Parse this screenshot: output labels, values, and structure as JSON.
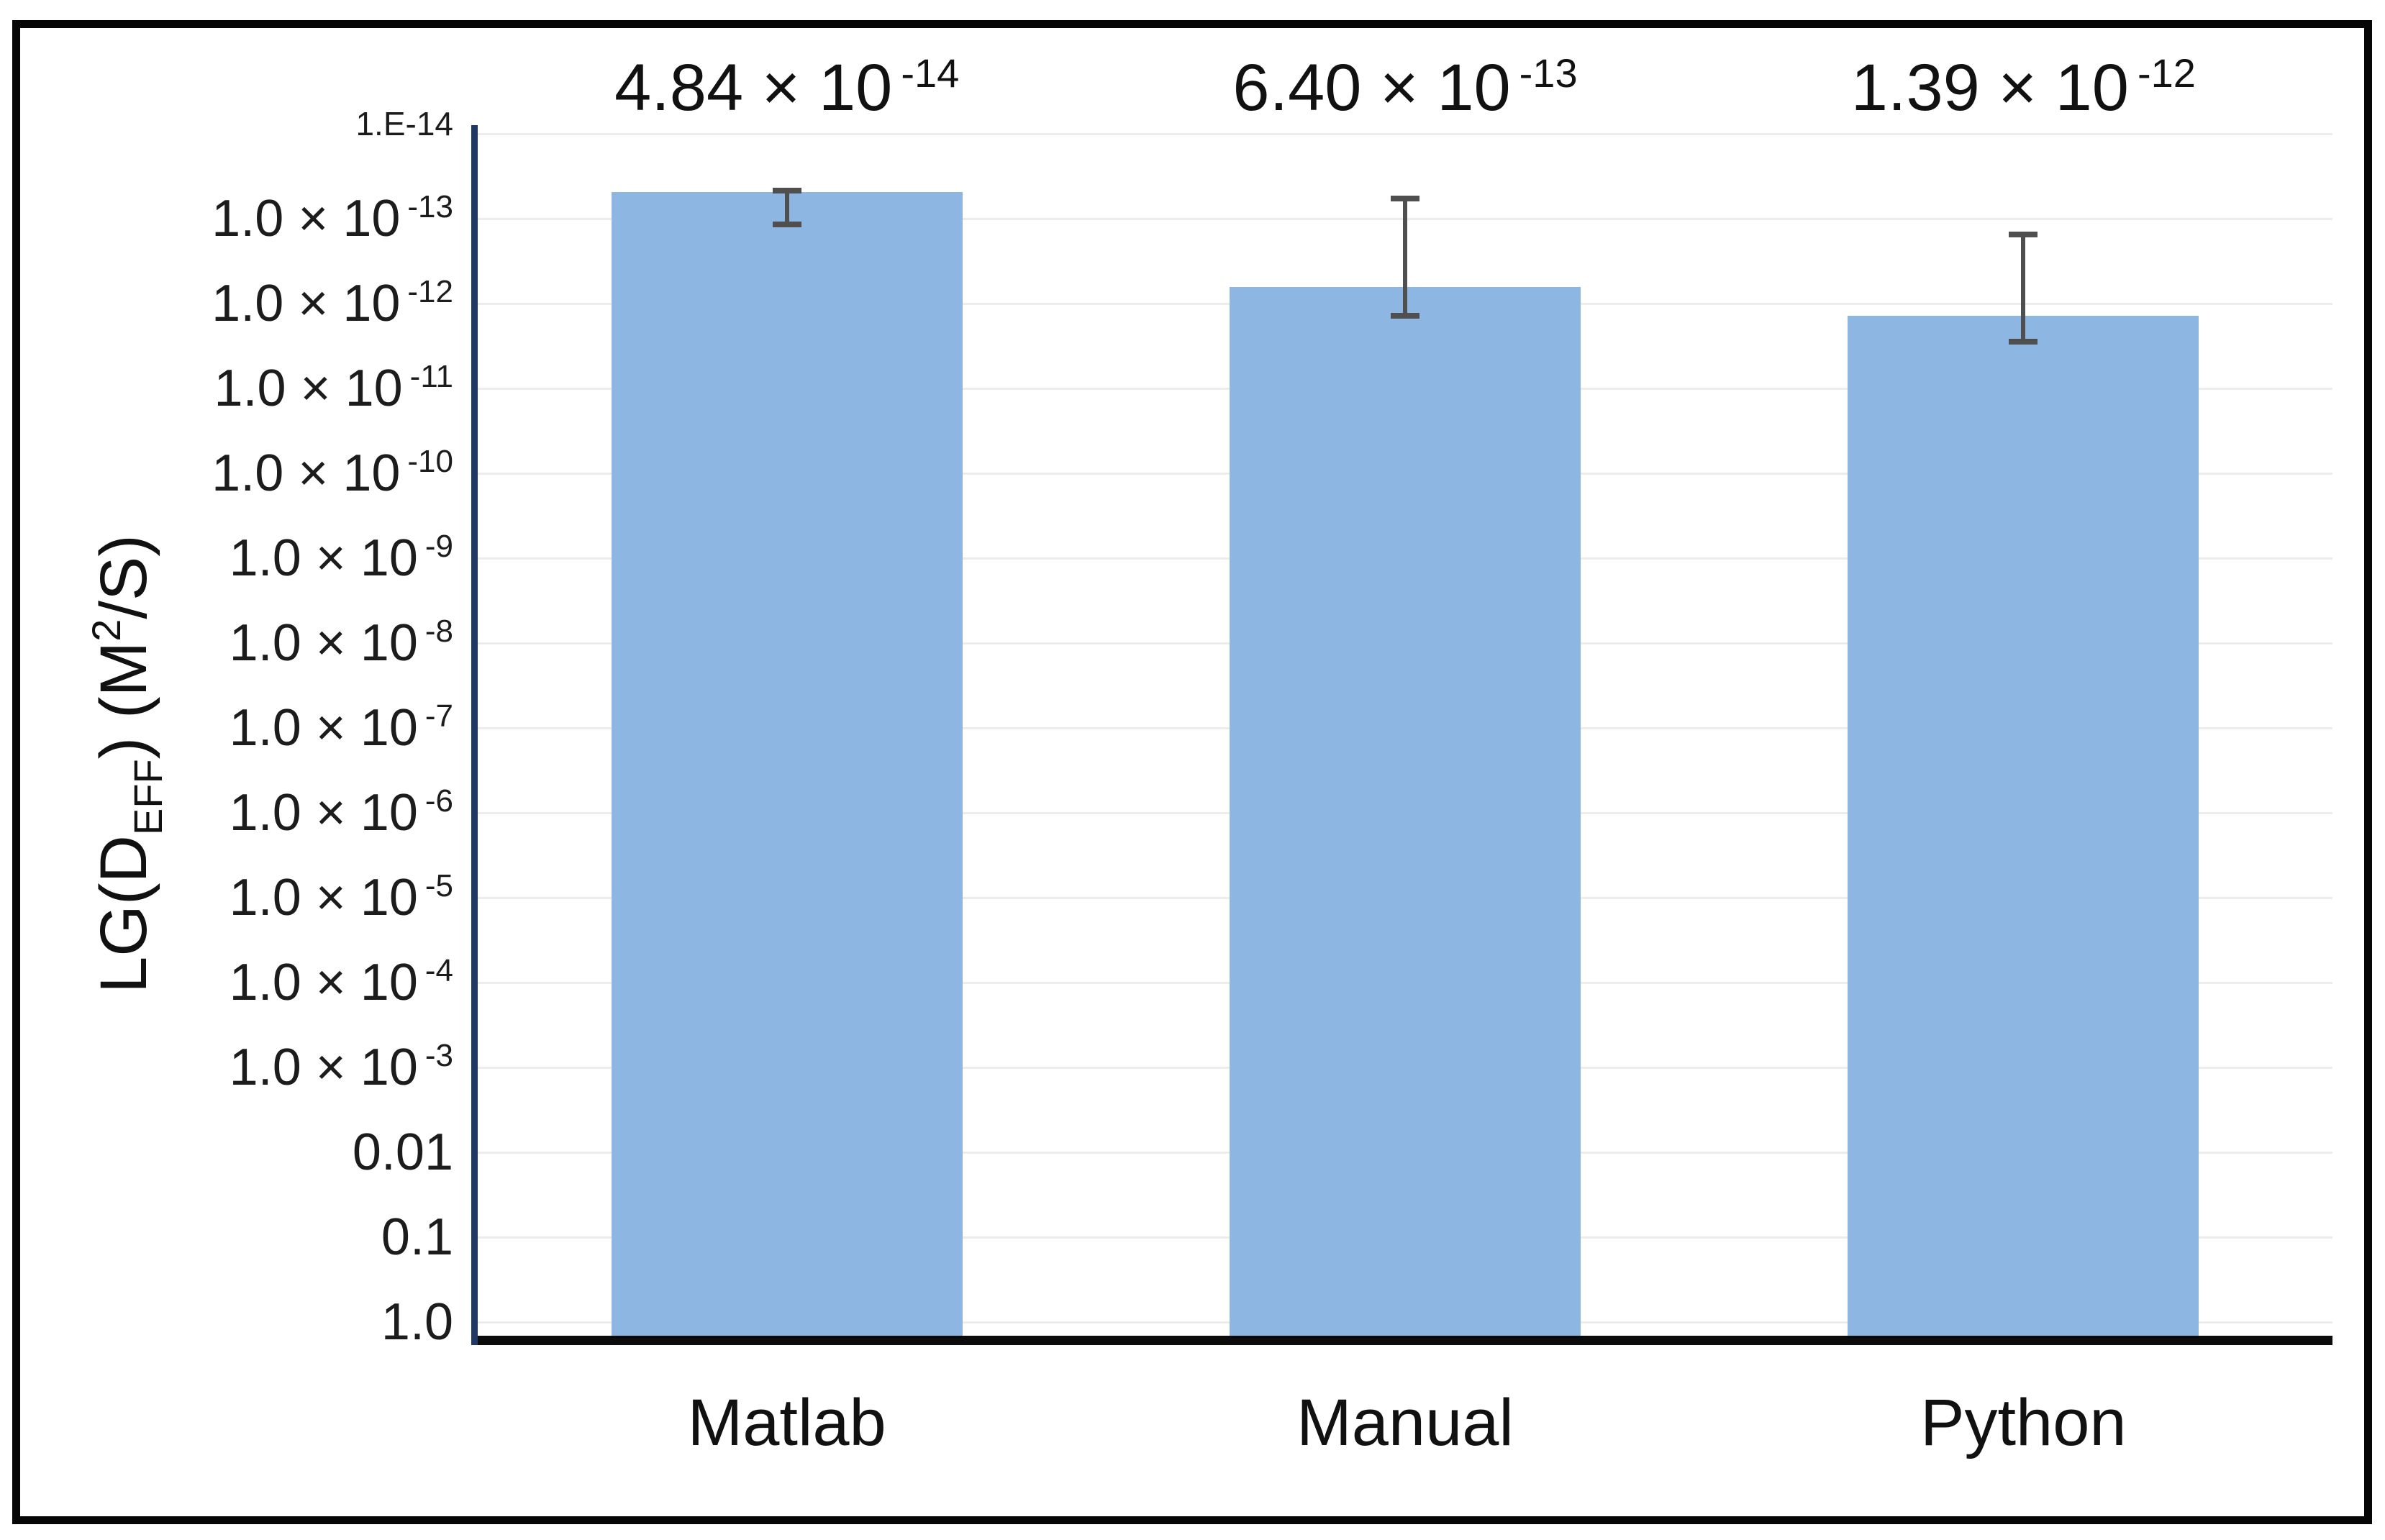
{
  "figure": {
    "background_color": "#ffffff",
    "frame_color": "#060606"
  },
  "chart_data": {
    "type": "bar",
    "title": "",
    "categories": [
      "Matlab",
      "Manual",
      "Python"
    ],
    "values": [
      4.84e-14,
      6.4e-13,
      1.39e-12
    ],
    "bar_value_labels": [
      {
        "mantissa": "4.84 × 10",
        "exponent": "-14"
      },
      {
        "mantissa": "6.40 × 10",
        "exponent": "-13"
      },
      {
        "mantissa": "1.39 × 10",
        "exponent": "-12"
      }
    ],
    "error_bars": [
      {
        "upper": 4.7e-14,
        "lower": 1.17e-13
      },
      {
        "upper": 5.8e-14,
        "lower": 1.4e-12
      },
      {
        "upper": 1.55e-13,
        "lower": 2.8e-12
      }
    ],
    "xlabel": "",
    "ylabel": "LG(D EFF ) (M 2 /S)",
    "ylabel_parts": {
      "pre": "LG(D",
      "sub": "EFF",
      "mid": ") (M",
      "sup": "2",
      "post": "/S)"
    },
    "y_axis": {
      "scale": "log10",
      "reversed": true,
      "top_value": 1e-14,
      "bottom_value": 1.0,
      "decades": 14,
      "top_tick_label": "1.E-14",
      "tick_labels": [
        {
          "mantissa": "1.0 × 10",
          "exponent": "-13"
        },
        {
          "mantissa": "1.0 × 10",
          "exponent": "-12"
        },
        {
          "mantissa": "1.0 × 10",
          "exponent": "-11"
        },
        {
          "mantissa": "1.0 × 10",
          "exponent": "-10"
        },
        {
          "mantissa": "1.0 × 10",
          "exponent": "-9"
        },
        {
          "mantissa": "1.0 × 10",
          "exponent": "-8"
        },
        {
          "mantissa": "1.0 × 10",
          "exponent": "-7"
        },
        {
          "mantissa": "1.0 × 10",
          "exponent": "-6"
        },
        {
          "mantissa": "1.0 × 10",
          "exponent": "-5"
        },
        {
          "mantissa": "1.0 × 10",
          "exponent": "-4"
        },
        {
          "mantissa": "1.0 × 10",
          "exponent": "-3"
        },
        {
          "plain": "0.01"
        },
        {
          "plain": "0.1"
        },
        {
          "plain": "1.0"
        }
      ]
    },
    "legend": null,
    "gridlines": true
  },
  "colors": {
    "bar_fill": "#8db7e2",
    "error_bar": "#4f4f4f",
    "y_axis_line": "#1f3864",
    "x_axis_line": "#0c0c0c",
    "gridline": "#ededed",
    "text": "#111111"
  }
}
